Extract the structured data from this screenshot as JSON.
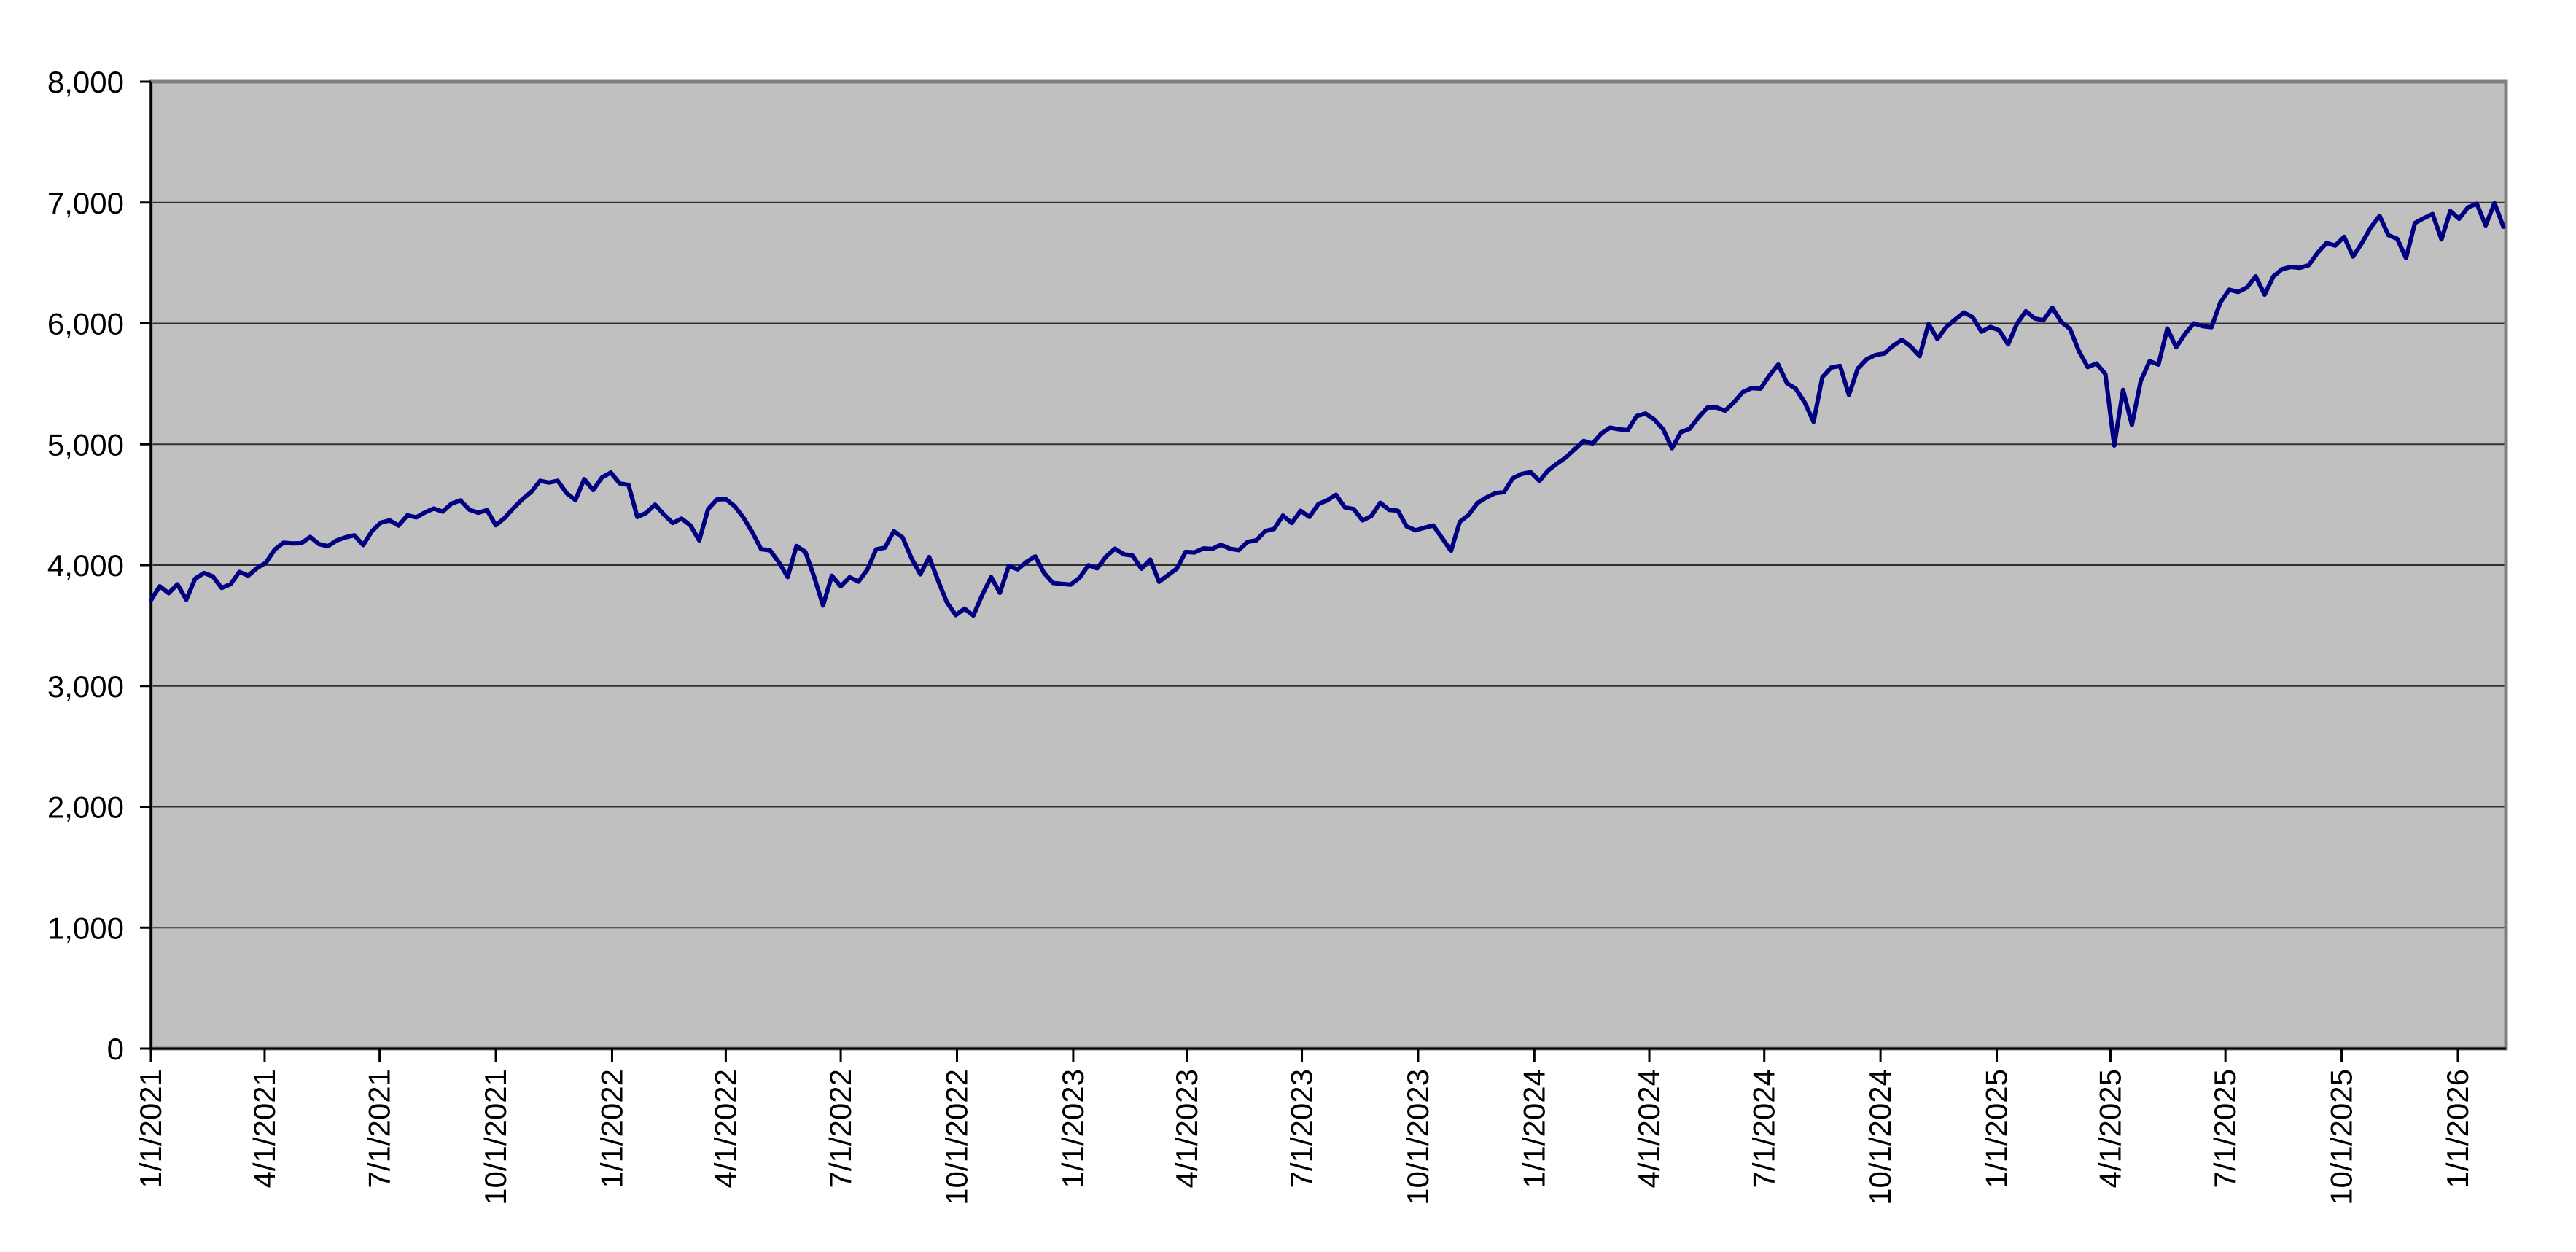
{
  "chart_data": {
    "type": "line",
    "title": "",
    "legend": "none",
    "grid": "horizontal",
    "colors": {
      "page_bg": "#ffffff",
      "plot_bg": "#c0c0c0",
      "gridline": "#303030",
      "plot_border": "#808080",
      "axis": "#000000",
      "text": "#000000",
      "series": "#000080"
    },
    "y_axis": {
      "range": [
        0,
        8000
      ],
      "tick_values": [
        0,
        1000,
        2000,
        3000,
        4000,
        5000,
        6000,
        7000,
        8000
      ],
      "tick_labels": [
        "0",
        "1,000",
        "2,000",
        "3,000",
        "4,000",
        "5,000",
        "6,000",
        "7,000",
        "8,000"
      ]
    },
    "x_axis": {
      "range_weeks": [
        0,
        266.3
      ],
      "label_rotation_deg": -90,
      "tick_labels": [
        "1/1/2021",
        "4/1/2021",
        "7/1/2021",
        "10/1/2021",
        "1/1/2022",
        "4/1/2022",
        "7/1/2022",
        "10/1/2022",
        "1/1/2023",
        "4/1/2023",
        "7/1/2023",
        "10/1/2023",
        "1/1/2024",
        "4/1/2024",
        "7/1/2024",
        "10/1/2024",
        "1/1/2025",
        "4/1/2025",
        "7/1/2025",
        "10/1/2025",
        "1/1/2026"
      ],
      "tick_positions_weeks": [
        0,
        12.857,
        25.857,
        39.0,
        52.143,
        65.0,
        78.0,
        91.143,
        104.286,
        117.143,
        130.143,
        143.286,
        156.429,
        169.429,
        182.429,
        195.571,
        208.714,
        221.571,
        234.571,
        247.714,
        260.857
      ]
    },
    "series": [
      {
        "color": "#000080",
        "stroke_width": 6,
        "x_start_week": 0,
        "x_step_weeks": 1,
        "values": [
          3710,
          3825,
          3768,
          3841,
          3714,
          3887,
          3935,
          3907,
          3811,
          3842,
          3943,
          3913,
          3975,
          4020,
          4129,
          4185,
          4180,
          4181,
          4233,
          4174,
          4156,
          4204,
          4230,
          4247,
          4166,
          4281,
          4352,
          4370,
          4327,
          4412,
          4395,
          4437,
          4468,
          4442,
          4509,
          4535,
          4459,
          4433,
          4455,
          4330,
          4391,
          4471,
          4545,
          4605,
          4698,
          4683,
          4698,
          4595,
          4538,
          4712,
          4621,
          4726,
          4766,
          4677,
          4663,
          4398,
          4432,
          4501,
          4419,
          4349,
          4385,
          4329,
          4204,
          4463,
          4543,
          4546,
          4488,
          4393,
          4272,
          4132,
          4123,
          4024,
          3901,
          4158,
          4109,
          3901,
          3666,
          3912,
          3825,
          3899,
          3863,
          3962,
          4130,
          4145,
          4280,
          4228,
          4058,
          3924,
          4067,
          3873,
          3693,
          3586,
          3640,
          3583,
          3753,
          3901,
          3771,
          3993,
          3965,
          4026,
          4072,
          3934,
          3852,
          3845,
          3839,
          3895,
          3999,
          3973,
          4071,
          4136,
          4090,
          4079,
          3970,
          4046,
          3862,
          3917,
          3971,
          4109,
          4105,
          4138,
          4134,
          4169,
          4136,
          4124,
          4192,
          4205,
          4282,
          4299,
          4410,
          4348,
          4450,
          4399,
          4505,
          4536,
          4582,
          4478,
          4464,
          4370,
          4406,
          4516,
          4457,
          4450,
          4320,
          4288,
          4309,
          4328,
          4224,
          4117,
          4358,
          4415,
          4514,
          4559,
          4595,
          4604,
          4719,
          4755,
          4770,
          4697,
          4784,
          4840,
          4891,
          4959,
          5027,
          5006,
          5089,
          5137,
          5124,
          5117,
          5234,
          5254,
          5204,
          5123,
          4967,
          5100,
          5128,
          5223,
          5303,
          5305,
          5278,
          5347,
          5432,
          5465,
          5460,
          5567,
          5660,
          5505,
          5459,
          5346,
          5186,
          5554,
          5635,
          5648,
          5408,
          5626,
          5703,
          5738,
          5751,
          5815,
          5865,
          5808,
          5729,
          5996,
          5871,
          5969,
          6032,
          6090,
          6051,
          5931,
          5971,
          5942,
          5827,
          5997,
          6101,
          6041,
          6026,
          6130,
          6013,
          5955,
          5770,
          5639,
          5668,
          5581,
          4990,
          5450,
          5160,
          5525,
          5687,
          5660,
          5958,
          5803,
          5912,
          6000,
          5977,
          5968,
          6173,
          6279,
          6260,
          6297,
          6389,
          6238,
          6389,
          6450,
          6467,
          6460,
          6482,
          6584,
          6664,
          6644,
          6716,
          6553,
          6664,
          6792,
          6890,
          6730,
          6700,
          6540,
          6830,
          6870,
          6905,
          6695,
          6930,
          6865,
          6960,
          6990,
          6810,
          6995,
          6800
        ]
      }
    ]
  }
}
